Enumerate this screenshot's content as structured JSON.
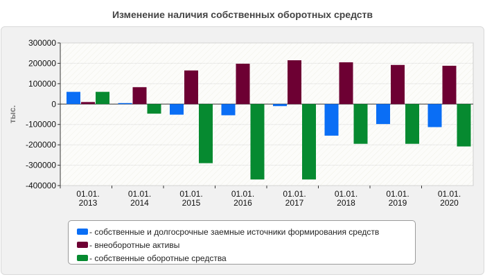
{
  "chart_data": {
    "type": "bar",
    "title": "Изменение наличия собственных оборотных средств",
    "ylabel": "тыс.",
    "categories": [
      "01.01. 2013",
      "01.01. 2014",
      "01.01. 2015",
      "01.01. 2016",
      "01.01. 2017",
      "01.01. 2018",
      "01.01. 2019",
      "01.01. 2020"
    ],
    "ylim": [
      -400000,
      300000
    ],
    "yticks": [
      "300000",
      "200000",
      "100000",
      "0",
      "-100000",
      "-200000",
      "-300000",
      "-400000"
    ],
    "grid": true,
    "legend_position": "bottom",
    "series": [
      {
        "name": "- собственные и долгосрочные заемные источники формирования средств",
        "color": "#0a6ef5",
        "values": [
          60000,
          5000,
          -52000,
          -55000,
          -10000,
          -155000,
          -98000,
          -113000
        ]
      },
      {
        "name": "- внеоборотные активы",
        "color": "#6d0033",
        "values": [
          10000,
          83000,
          165000,
          198000,
          215000,
          205000,
          192000,
          188000
        ]
      },
      {
        "name": "- собственные оборотные средства",
        "color": "#068a30",
        "values": [
          60000,
          -47000,
          -290000,
          -370000,
          -370000,
          -195000,
          -195000,
          -208000
        ]
      }
    ]
  }
}
